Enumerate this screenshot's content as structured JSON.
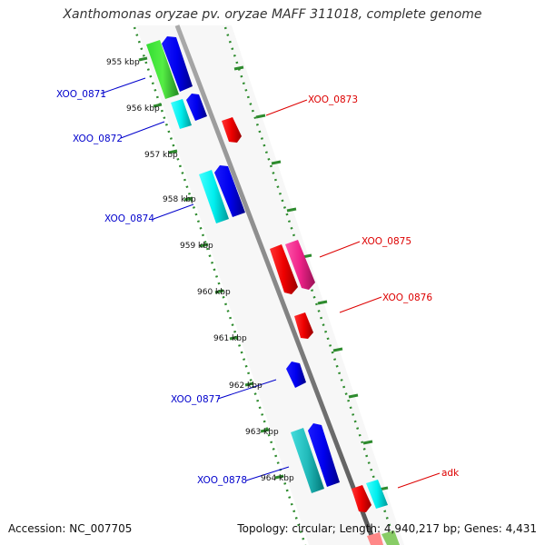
{
  "title": "Xanthomonas oryzae pv. oryzae MAFF 311018, complete genome",
  "footer": {
    "accession": "Accession: NC_007705",
    "topology": "Topology: circular; Length: 4,940,217 bp; Genes: 4,431"
  },
  "colors": {
    "axis": "#888888",
    "tick": "#2e8b2e",
    "minus_label": "#0000cc",
    "plus_label": "#dd0000"
  },
  "kbp_ticks": [
    "955 kbp",
    "956 kbp",
    "957 kbp",
    "958 kbp",
    "959 kbp",
    "960 kbp",
    "961 kbp",
    "962 kbp",
    "963 kbp",
    "964 kbp"
  ],
  "gene_labels": [
    {
      "text": "XOO_0871",
      "strand": "minus"
    },
    {
      "text": "XOO_0872",
      "strand": "minus"
    },
    {
      "text": "XOO_0873",
      "strand": "plus"
    },
    {
      "text": "XOO_0874",
      "strand": "minus"
    },
    {
      "text": "XOO_0875",
      "strand": "plus"
    },
    {
      "text": "XOO_0876",
      "strand": "plus"
    },
    {
      "text": "XOO_0877",
      "strand": "minus"
    },
    {
      "text": "XOO_0878",
      "strand": "minus"
    },
    {
      "text": "adk",
      "strand": "plus"
    }
  ]
}
